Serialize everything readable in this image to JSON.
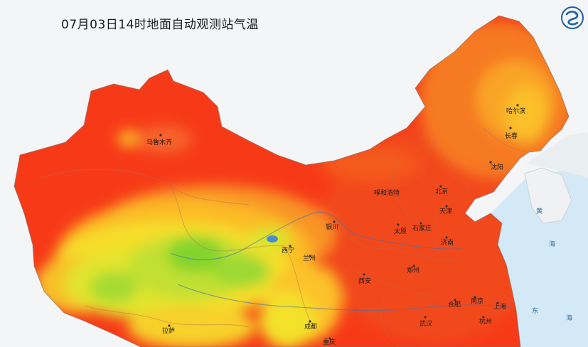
{
  "title": "07月03日14时地面自动观测站气温",
  "logo": {
    "icon": "dragon-logo-icon",
    "color": "#1e5fa6"
  },
  "palette": {
    "hot": "#f0271a",
    "warm": "#f86a1c",
    "mild": "#fbb527",
    "cool": "#f6e62a",
    "cooler": "#b5e033",
    "coolest": "#78d22c",
    "sea": "#cfe6f2",
    "land_outside": "#ececec"
  },
  "cities": [
    {
      "name": "乌鲁木齐"
    },
    {
      "name": "哈尔滨"
    },
    {
      "name": "长春"
    },
    {
      "name": "沈阳"
    },
    {
      "name": "呼和浩特"
    },
    {
      "name": "北京"
    },
    {
      "name": "天津"
    },
    {
      "name": "银川"
    },
    {
      "name": "太原"
    },
    {
      "name": "石家庄"
    },
    {
      "name": "济南"
    },
    {
      "name": "西宁"
    },
    {
      "name": "兰州"
    },
    {
      "name": "郑州"
    },
    {
      "name": "西安"
    },
    {
      "name": "合肥"
    },
    {
      "name": "南京"
    },
    {
      "name": "上海"
    },
    {
      "name": "杭州"
    },
    {
      "name": "武汉"
    },
    {
      "name": "成都"
    },
    {
      "name": "重庆"
    },
    {
      "name": "拉萨"
    }
  ],
  "seas": [
    {
      "name": "黄"
    },
    {
      "name": "海"
    },
    {
      "name": "东"
    },
    {
      "name": "海"
    }
  ]
}
